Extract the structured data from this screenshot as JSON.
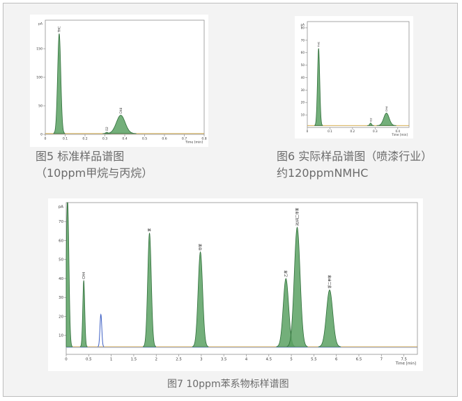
{
  "colors": {
    "fill": "#5aa163",
    "stroke": "#2f6e3a",
    "baseline": "#cfa23a",
    "frame": "#8f8f8f"
  },
  "captions": {
    "fig5_line1": "图5 标准样品谱图",
    "fig5_line2": "（10ppm甲烷与丙烷）",
    "fig6_line1": "图6 实际样品谱图（喷漆行业）",
    "fig6_line2": "约120ppmNMHC",
    "fig7": "图7 10ppm苯系物标样谱图"
  },
  "chart_data": [
    {
      "id": "fig5",
      "type": "line",
      "ylabel": "pA",
      "xlabel": "Time [min]",
      "xlim": [
        0,
        0.8
      ],
      "ylim": [
        0,
        200
      ],
      "xticks": [
        0,
        0.1,
        0.2,
        0.3,
        0.4,
        0.5,
        0.6,
        0.7,
        0.8
      ],
      "xtick_labels": [
        "0",
        "0.1",
        "0.2",
        "0.3",
        "0.4",
        "0.5",
        "0.6",
        "0.7",
        "0.8"
      ],
      "yticks": [
        0,
        50,
        100,
        150
      ],
      "ytick_labels": [
        "0",
        "50",
        "100",
        "150"
      ],
      "peaks": [
        {
          "label": "THC",
          "t": 0.07,
          "h": 175,
          "w": 0.008
        },
        {
          "label": "O2",
          "t": 0.31,
          "h": 2,
          "w": 0.006
        },
        {
          "label": "CH4",
          "t": 0.38,
          "h": 32,
          "w": 0.022
        }
      ]
    },
    {
      "id": "fig6",
      "type": "line",
      "ylabel": "pA",
      "xlabel": "Time [min]",
      "xlim": [
        0,
        0.45
      ],
      "ylim": [
        0,
        85
      ],
      "xticks": [
        0,
        0.1,
        0.2,
        0.3,
        0.4
      ],
      "xtick_labels": [
        "0",
        "0.1",
        "0.2",
        "0.3",
        "0.4"
      ],
      "yticks": [
        10,
        20,
        30,
        40,
        50,
        60,
        70,
        80
      ],
      "ytick_labels": [
        "10",
        "20",
        "30",
        "40",
        "50",
        "60",
        "70",
        "80"
      ],
      "peaks": [
        {
          "label": "THC",
          "t": 0.05,
          "h": 62,
          "w": 0.005
        },
        {
          "label": "O2",
          "t": 0.28,
          "h": 2,
          "w": 0.004
        },
        {
          "label": "CH4",
          "t": 0.35,
          "h": 10,
          "w": 0.012
        }
      ]
    },
    {
      "id": "fig7",
      "type": "line",
      "ylabel": "pA",
      "xlabel": "Time [min]",
      "xlim": [
        0,
        7.8
      ],
      "ylim": [
        0,
        80
      ],
      "xticks": [
        0,
        0.5,
        1,
        1.5,
        2,
        2.5,
        3,
        3.5,
        4,
        4.5,
        5,
        5.5,
        6,
        6.5,
        7,
        7.5
      ],
      "xtick_labels": [
        "0",
        "0.5",
        "1",
        "1.5",
        "2",
        "2.5",
        "3",
        "3.5",
        "4",
        "4.5",
        "5",
        "5.5",
        "6",
        "6.5",
        "7",
        "7.5"
      ],
      "yticks": [
        10,
        20,
        30,
        40,
        50,
        60,
        70
      ],
      "ytick_labels": [
        "10",
        "20",
        "30",
        "40",
        "50",
        "60",
        "70"
      ],
      "peaks": [
        {
          "label": "",
          "t": 0.03,
          "h": 85,
          "w": 0.03
        },
        {
          "label": "CH4",
          "t": 0.39,
          "h": 35,
          "w": 0.022
        },
        {
          "label": "苯",
          "t": 1.85,
          "h": 60,
          "w": 0.04
        },
        {
          "label": "甲苯",
          "t": 2.98,
          "h": 50,
          "w": 0.05
        },
        {
          "label": "乙苯",
          "t": 4.88,
          "h": 36,
          "w": 0.06
        },
        {
          "label": "对/间二甲苯",
          "t": 5.13,
          "h": 63,
          "w": 0.065
        },
        {
          "label": "邻二甲苯",
          "t": 5.85,
          "h": 30,
          "w": 0.07
        }
      ],
      "blue_peak": {
        "t": 0.77,
        "h": 17,
        "w": 0.02
      }
    }
  ]
}
